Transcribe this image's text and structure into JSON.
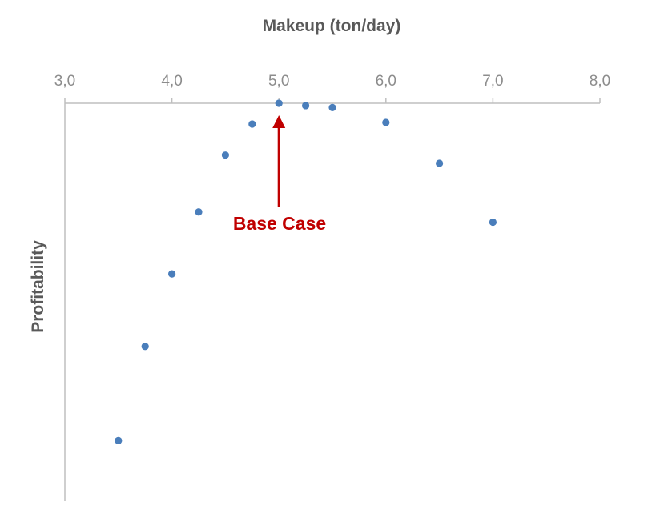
{
  "chart_data": {
    "type": "scatter",
    "title": "",
    "xlabel": "Makeup (ton/day)",
    "ylabel": "Profitability",
    "xlim": [
      3.0,
      8.0
    ],
    "x_ticks": [
      3.0,
      4.0,
      5.0,
      6.0,
      7.0,
      8.0
    ],
    "x_tick_labels": [
      "3,0",
      "4,0",
      "5,0",
      "6,0",
      "7,0",
      "8,0"
    ],
    "x_axis_position": "top",
    "y_axis_tick_labels": "none",
    "ylim": [
      0,
      100
    ],
    "grid": false,
    "legend": "none",
    "marker_color": "#4a7ebb",
    "series": [
      {
        "x": [
          3.5,
          3.75,
          4.0,
          4.25,
          4.5,
          4.75,
          5.0,
          5.25,
          5.5,
          6.0,
          6.5,
          7.0
        ],
        "y": [
          14,
          38,
          56.5,
          72.3,
          86.8,
          94.7,
          100,
          99.4,
          98.9,
          95.1,
          84.7,
          69.7
        ]
      }
    ],
    "annotation": {
      "text": "Base Case",
      "x": 5.0,
      "color": "#c00000"
    }
  }
}
